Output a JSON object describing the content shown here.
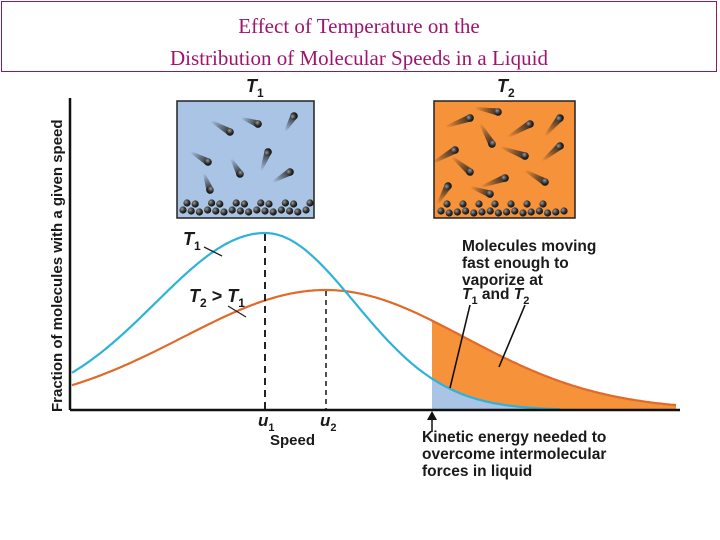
{
  "title": {
    "line1": "Effect of Temperature on the",
    "line2": "Distribution of Molecular Speeds in a Liquid"
  },
  "boxes": {
    "left_label_main": "T",
    "left_label_sub": "1",
    "right_label_main": "T",
    "right_label_sub": "2"
  },
  "axes": {
    "ylabel": "Fraction of molecules with a given speed",
    "xlabel": "Speed"
  },
  "curves": {
    "t1_main": "T",
    "t1_sub": "1",
    "t2_main": "T",
    "t2_sub": "2",
    "t2_gt": " > ",
    "t2_t1_main": "T",
    "t2_t1_sub": "1"
  },
  "peaks": {
    "u1_main": "u",
    "u1_sub": "1",
    "u2_main": "u",
    "u2_sub": "2"
  },
  "annotations": {
    "vaporize_line1": "Molecules moving",
    "vaporize_line2": "fast enough to",
    "vaporize_line3": "vaporize at",
    "vaporize_line4_a": "T",
    "vaporize_line4_a_sub": "1",
    "vaporize_line4_and": " and ",
    "vaporize_line4_b": "T",
    "vaporize_line4_b_sub": "2",
    "ke_line1": "Kinetic energy needed to",
    "ke_line2": "overcome intermolecular",
    "ke_line3": "forces in liquid"
  },
  "colors": {
    "title": "#a0146e",
    "box_cool": "#a9c4e4",
    "box_hot": "#f5923a",
    "curve_t1": "#2fb2d8",
    "curve_t2": "#e06a2a",
    "fill_t1": "#a9c4e4",
    "fill_t2": "#f5923a"
  }
}
